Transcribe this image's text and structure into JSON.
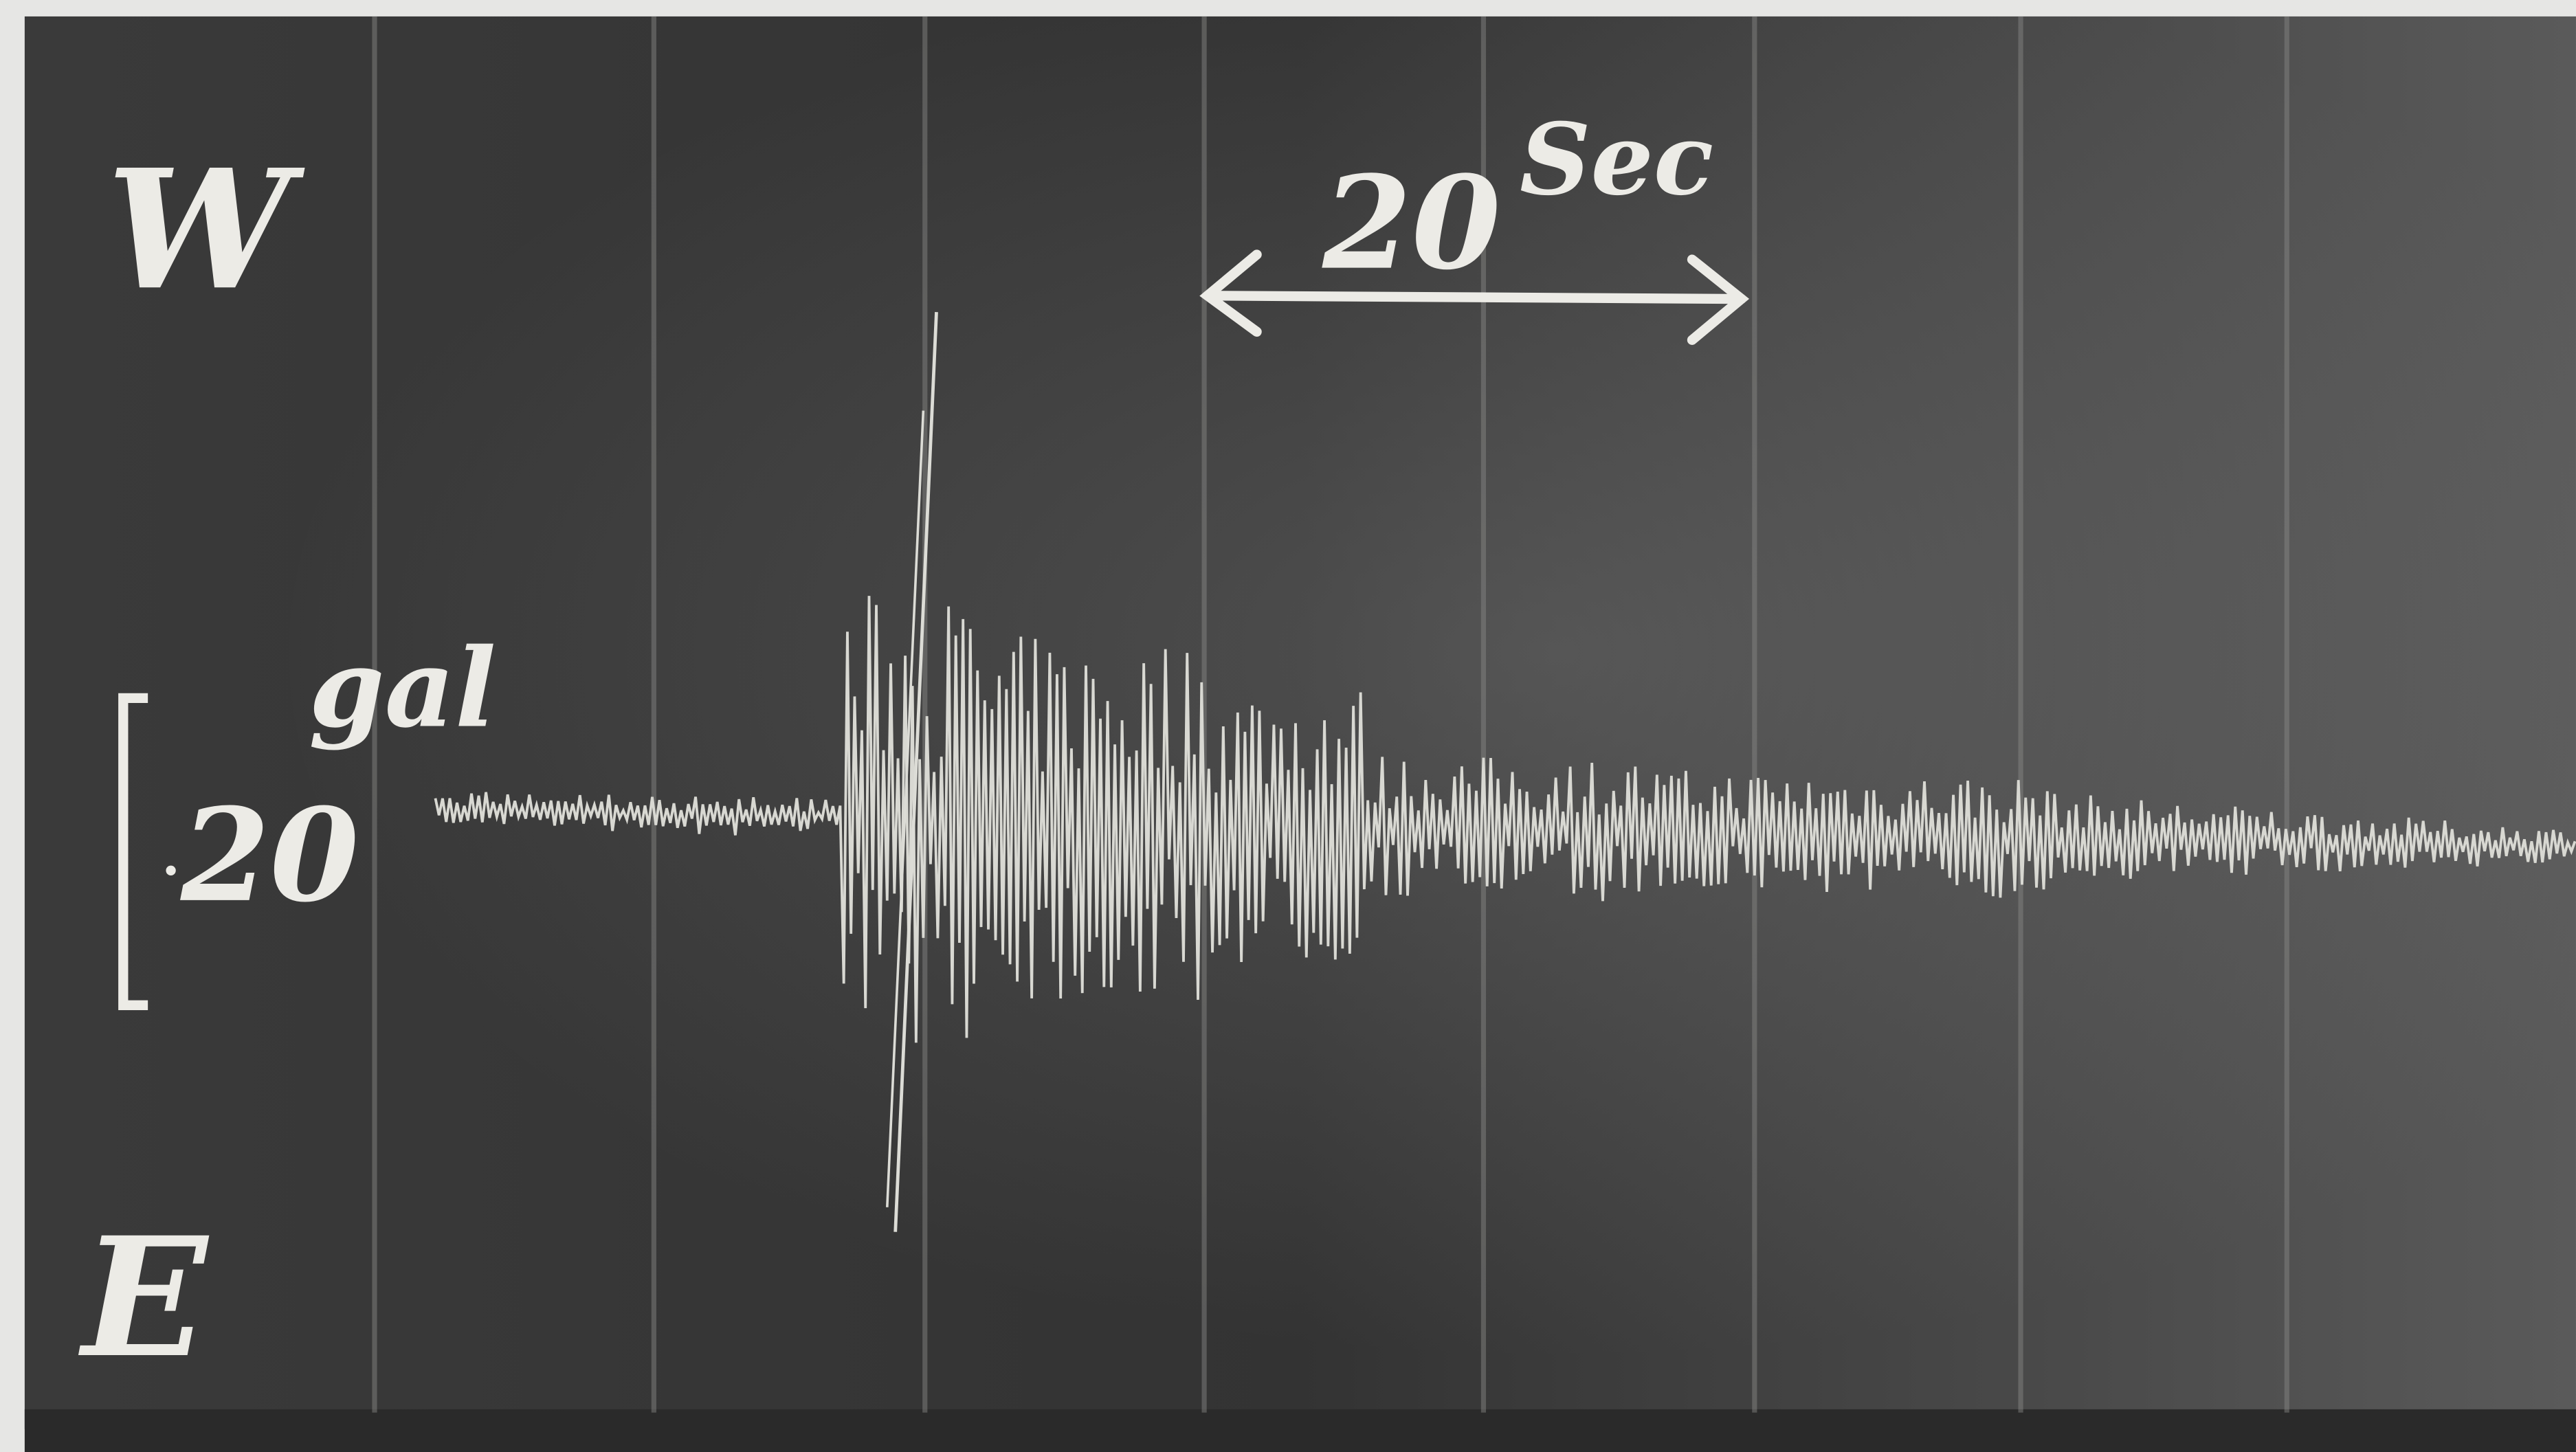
{
  "labels": {
    "west": "W",
    "east": "E",
    "time_scale_value": "20",
    "time_scale_unit": "Sec",
    "amplitude_unit": "gal",
    "amplitude_value": "20"
  }
}
